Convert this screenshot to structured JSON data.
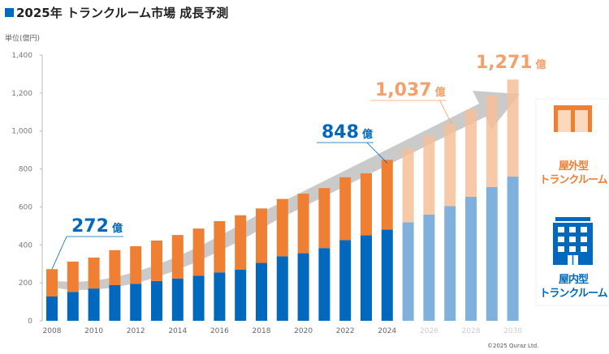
{
  "title": "2025年 トランクルーム市場 成長予測",
  "unit_label": "単位(億円)",
  "copyright": "©2025 Quraz Ltd.",
  "colors": {
    "indoor": "#0068bd",
    "outdoor": "#ef7f32",
    "indoor_forecast": "#80b1dd",
    "outdoor_forecast": "#f7c09a",
    "arrow": "#b8b8b8"
  },
  "legend": {
    "outdoor": {
      "line1": "屋外型",
      "line2": "トランクルーム",
      "icon": "container-icon"
    },
    "indoor": {
      "line1": "屋内型",
      "line2": "トランクルーム",
      "icon": "building-icon"
    }
  },
  "annotations": [
    {
      "year": 2008,
      "value": "272",
      "unit": "億",
      "color": "#0068bd"
    },
    {
      "year": 2024,
      "value": "848",
      "unit": "億",
      "color": "#0068bd"
    },
    {
      "year": 2027,
      "value": "1,037",
      "unit": "億",
      "color": "#f4a06a"
    },
    {
      "year": 2030,
      "value": "1,271",
      "unit": "億",
      "color": "#f4a06a"
    }
  ],
  "chart_data": {
    "type": "bar",
    "stacked": true,
    "categories": [
      2008,
      2009,
      2010,
      2011,
      2012,
      2013,
      2014,
      2015,
      2016,
      2017,
      2018,
      2019,
      2020,
      2021,
      2022,
      2023,
      2024,
      2025,
      2026,
      2027,
      2028,
      2029,
      2030
    ],
    "forecast_from": 2025,
    "series": [
      {
        "name": "屋内型トランクルーム",
        "values": [
          128,
          152,
          170,
          188,
          195,
          210,
          223,
          237,
          255,
          270,
          305,
          340,
          356,
          383,
          425,
          450,
          481,
          519,
          560,
          604,
          653,
          705,
          760
        ]
      },
      {
        "name": "屋外型トランクルーム",
        "values": [
          144,
          160,
          163,
          184,
          198,
          213,
          229,
          249,
          270,
          286,
          287,
          302,
          314,
          316,
          331,
          327,
          367,
          389,
          412,
          433,
          458,
          481,
          511
        ]
      }
    ],
    "totals": [
      272,
      312,
      333,
      372,
      393,
      423,
      452,
      486,
      525,
      556,
      592,
      642,
      670,
      699,
      756,
      777,
      848,
      908,
      972,
      1037,
      1111,
      1186,
      1271
    ],
    "ylabel": "単位(億円)",
    "ylim": [
      0,
      1400
    ],
    "yticks": [
      "0",
      "200",
      "400",
      "600",
      "800",
      "1,000",
      "1,200",
      "1,400"
    ],
    "xticks": [
      "2008",
      "2010",
      "2012",
      "2014",
      "2016",
      "2018",
      "2020",
      "2022",
      "2024",
      "2026",
      "2028",
      "2030"
    ],
    "grid": false,
    "legend_placement": "right"
  }
}
